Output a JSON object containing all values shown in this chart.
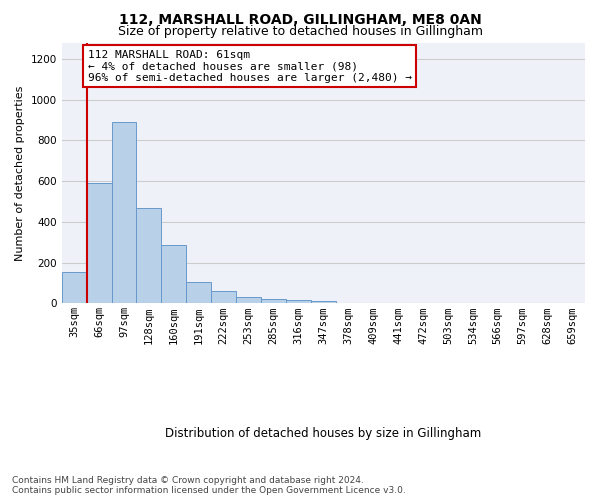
{
  "title1": "112, MARSHALL ROAD, GILLINGHAM, ME8 0AN",
  "title2": "Size of property relative to detached houses in Gillingham",
  "xlabel": "Distribution of detached houses by size in Gillingham",
  "ylabel": "Number of detached properties",
  "categories": [
    "35sqm",
    "66sqm",
    "97sqm",
    "128sqm",
    "160sqm",
    "191sqm",
    "222sqm",
    "253sqm",
    "285sqm",
    "316sqm",
    "347sqm",
    "378sqm",
    "409sqm",
    "441sqm",
    "472sqm",
    "503sqm",
    "534sqm",
    "566sqm",
    "597sqm",
    "628sqm",
    "659sqm"
  ],
  "bar_values": [
    155,
    590,
    890,
    470,
    285,
    105,
    60,
    30,
    20,
    15,
    10,
    0,
    0,
    0,
    0,
    0,
    0,
    0,
    0,
    0,
    0
  ],
  "bar_color": "#b8d0e8",
  "bar_edge_color": "#6699cc",
  "vline_color": "#cc0000",
  "annotation_text": "112 MARSHALL ROAD: 61sqm\n← 4% of detached houses are smaller (98)\n96% of semi-detached houses are larger (2,480) →",
  "annotation_box_color": "#ffffff",
  "annotation_box_edge_color": "#cc0000",
  "ylim": [
    0,
    1280
  ],
  "yticks": [
    0,
    200,
    400,
    600,
    800,
    1000,
    1200
  ],
  "grid_color": "#cccccc",
  "background_color": "#eef2f8",
  "footer_text": "Contains HM Land Registry data © Crown copyright and database right 2024.\nContains public sector information licensed under the Open Government Licence v3.0.",
  "title1_fontsize": 10,
  "title2_fontsize": 9,
  "xlabel_fontsize": 8.5,
  "ylabel_fontsize": 8,
  "tick_fontsize": 7.5,
  "annotation_fontsize": 8,
  "footer_fontsize": 6.5
}
